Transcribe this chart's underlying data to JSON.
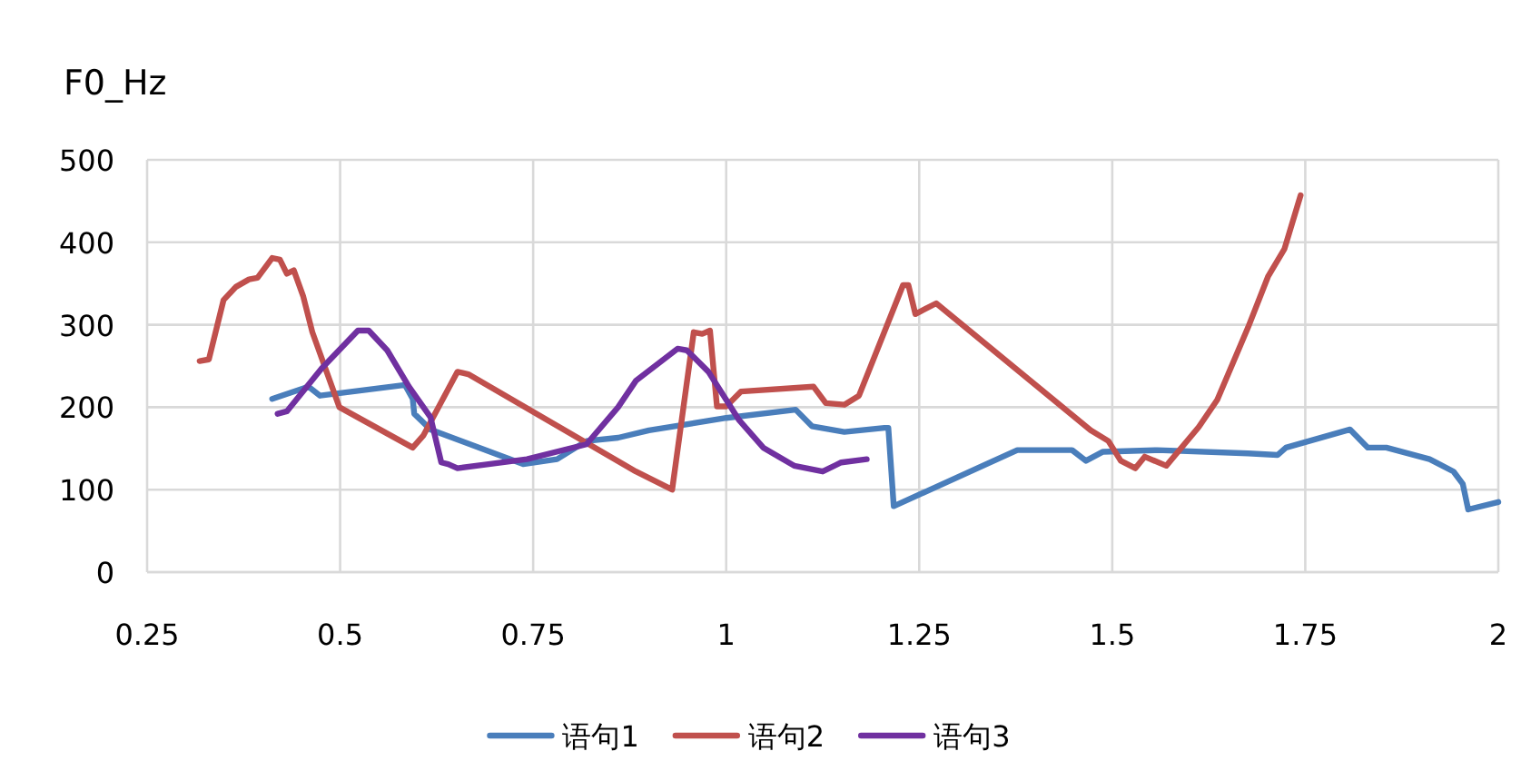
{
  "chart_data": {
    "type": "line",
    "ylabel": "F0_Hz",
    "xlim": [
      0.25,
      2
    ],
    "xticks": [
      0.25,
      0.5,
      0.75,
      1,
      1.25,
      1.5,
      1.75,
      2
    ],
    "ylim": [
      0,
      500
    ],
    "yticks": [
      0,
      100,
      200,
      300,
      400,
      500
    ],
    "grid": true,
    "legend": "bottom",
    "series": [
      {
        "name": "语句1",
        "color": "#4a7ebb",
        "x": [
          0.412,
          0.459,
          0.474,
          0.584,
          0.594,
          0.596,
          0.617,
          0.737,
          0.781,
          0.819,
          0.86,
          0.9,
          1.0,
          1.09,
          1.111,
          1.153,
          1.205,
          1.21,
          1.217,
          1.377,
          1.448,
          1.466,
          1.488,
          1.558,
          1.676,
          1.714,
          1.725,
          1.808,
          1.831,
          1.855,
          1.911,
          1.942,
          1.954,
          1.961,
          2.0
        ],
        "values": [
          210,
          225,
          214,
          227,
          210,
          192,
          173,
          131,
          137,
          159,
          163,
          172,
          187,
          197,
          177,
          170,
          175,
          175,
          80,
          148,
          148,
          135,
          146,
          148,
          144,
          142,
          151,
          173,
          151,
          151,
          137,
          122,
          107,
          76,
          85
        ]
      },
      {
        "name": "语句2",
        "color": "#c0504d",
        "x": [
          0.318,
          0.33,
          0.349,
          0.365,
          0.382,
          0.393,
          0.412,
          0.422,
          0.431,
          0.44,
          0.452,
          0.464,
          0.499,
          0.594,
          0.608,
          0.652,
          0.666,
          0.883,
          0.93,
          0.958,
          0.969,
          0.979,
          0.988,
          1.0,
          1.019,
          1.113,
          1.129,
          1.153,
          1.172,
          1.229,
          1.236,
          1.245,
          1.272,
          1.472,
          1.495,
          1.511,
          1.53,
          1.542,
          1.57,
          1.612,
          1.636,
          1.676,
          1.702,
          1.723,
          1.744
        ],
        "values": [
          256,
          258,
          330,
          346,
          355,
          357,
          381,
          379,
          362,
          366,
          335,
          291,
          200,
          151,
          166,
          243,
          240,
          122,
          100,
          291,
          289,
          293,
          201,
          201,
          219,
          225,
          205,
          203,
          214,
          348,
          348,
          313,
          326,
          172,
          159,
          135,
          126,
          140,
          129,
          176,
          209,
          297,
          359,
          392,
          457
        ]
      },
      {
        "name": "语句3",
        "color": "#7030a0",
        "x": [
          0.419,
          0.431,
          0.476,
          0.523,
          0.537,
          0.561,
          0.589,
          0.617,
          0.631,
          0.64,
          0.652,
          0.742,
          0.819,
          0.86,
          0.883,
          0.937,
          0.949,
          0.977,
          1.017,
          1.048,
          1.088,
          1.125,
          1.149,
          1.182
        ],
        "values": [
          192,
          195,
          247,
          293,
          293,
          269,
          225,
          188,
          133,
          131,
          126,
          137,
          155,
          200,
          232,
          271,
          269,
          243,
          184,
          151,
          129,
          122,
          133,
          137
        ]
      }
    ]
  }
}
